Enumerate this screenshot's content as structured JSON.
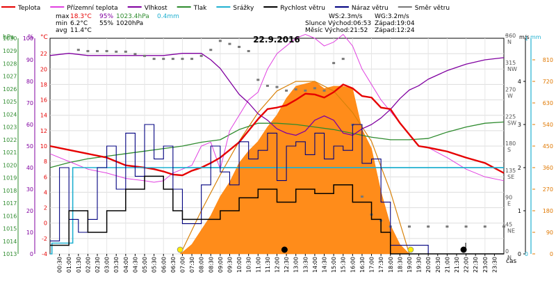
{
  "chart_data": {
    "type": "line",
    "title": "22.9.2016",
    "legend": [
      {
        "key": "teplota",
        "label": "Teplota",
        "color": "#e60000"
      },
      {
        "key": "rosny",
        "label": "Přízemní teplota",
        "color": "#e040e0"
      },
      {
        "key": "vlhkost",
        "label": "Vlhkost",
        "color": "#8000a0"
      },
      {
        "key": "tlak",
        "label": "Tlak",
        "color": "#2e8b2e"
      },
      {
        "key": "srazky",
        "label": "Srážky",
        "color": "#20b0d0"
      },
      {
        "key": "rychlost",
        "label": "Rychlost větru",
        "color": "#000000"
      },
      {
        "key": "naraz",
        "label": "Náraz větru",
        "color": "#000080"
      },
      {
        "key": "smer",
        "label": "Směr větru",
        "color": "#777777"
      }
    ],
    "stats": {
      "max": {
        "label": "max",
        "temp": "18.3°C",
        "hum": "95%",
        "press": "1023.4hPa",
        "rain": "0.4mm"
      },
      "min": {
        "label": "min",
        "temp": "6.2°C",
        "hum": "55%",
        "press": "1020hPa"
      },
      "avg": {
        "label": "avg",
        "temp": "11.4°C"
      }
    },
    "info": {
      "ws": "WS:2.3m/s",
      "wg": "WG:3.2m/s",
      "sun_rise": "Slunce Východ:06:53",
      "sun_set": "Západ:19:04",
      "moon_rise": "Měsíc Východ:21:52",
      "moon_set": "Západ:12:24"
    },
    "axis_titles": {
      "hpa": "hPa",
      "pct": "%",
      "degc": "°C",
      "ms": "m/s",
      "mm": "mm",
      "deg": "°",
      "time": "čas"
    },
    "axes": {
      "pressure": {
        "min": 1013,
        "max": 1030,
        "ticks": [
          "1013",
          "1014",
          "1015",
          "1016",
          "1017",
          "1018",
          "1019",
          "1020",
          "1021",
          "1022",
          "1023",
          "1024",
          "1025",
          "1026",
          "1027",
          "1028",
          "1029",
          "1030"
        ]
      },
      "humidity": {
        "min": 0,
        "max": 100,
        "ticks": [
          "0",
          "10",
          "20",
          "30",
          "40",
          "50",
          "60",
          "70",
          "80",
          "90",
          "100"
        ]
      },
      "temperature": {
        "min": -4,
        "max": 24,
        "ticks": [
          "-4",
          "-2",
          "0",
          "2",
          "4",
          "6",
          "8",
          "10",
          "12",
          "14",
          "16",
          "18",
          "20",
          "22"
        ]
      },
      "direction": {
        "min": 0,
        "max": 360,
        "ticks": [
          {
            "v": 0,
            "l": "0",
            "d": "N"
          },
          {
            "v": 45,
            "l": "45",
            "d": "NE"
          },
          {
            "v": 90,
            "l": "90",
            "d": "E"
          },
          {
            "v": 135,
            "l": "135",
            "d": "SE"
          },
          {
            "v": 180,
            "l": "180",
            "d": "S"
          },
          {
            "v": 225,
            "l": "225",
            "d": "SW"
          },
          {
            "v": 270,
            "l": "270",
            "d": "W"
          },
          {
            "v": 315,
            "l": "315",
            "d": "NW"
          },
          {
            "v": 360,
            "l": "360",
            "d": "N"
          }
        ]
      },
      "wind": {
        "min": 0,
        "max": 5,
        "ticks": [
          "0",
          "1",
          "2",
          "3",
          "4"
        ]
      },
      "rain": {
        "min": 0,
        "max": 1,
        "ticks": [
          "0",
          "1"
        ]
      },
      "solar": {
        "min": 0,
        "max": 900,
        "ticks": [
          "0",
          "90",
          "180",
          "270",
          "360",
          "450",
          "540",
          "630",
          "720",
          "810"
        ]
      },
      "time_ticks": [
        "00:30",
        "01:00",
        "01:30",
        "02:00",
        "02:30",
        "03:00",
        "03:30",
        "04:00",
        "04:30",
        "05:00",
        "05:30",
        "06:00",
        "06:30",
        "07:00",
        "07:30",
        "08:00",
        "08:30",
        "09:00",
        "09:30",
        "10:00",
        "10:30",
        "11:00",
        "11:30",
        "12:00",
        "12:30",
        "13:00",
        "13:30",
        "14:00",
        "14:30",
        "15:00",
        "15:30",
        "16:00",
        "16:30",
        "17:00",
        "17:30",
        "18:00",
        "18:30",
        "19:00",
        "19:30",
        "20:00",
        "20:30",
        "21:00",
        "21:30",
        "22:00",
        "22:30",
        "23:00",
        "23:30"
      ]
    },
    "series": {
      "temperature": {
        "x": [
          0,
          1,
          2,
          3,
          4,
          5,
          5.5,
          6,
          6.5,
          7,
          7.5,
          8,
          8.5,
          9,
          9.5,
          10,
          10.5,
          11,
          11.5,
          12,
          12.5,
          13,
          13.5,
          14,
          14.5,
          15,
          15.5,
          16,
          16.5,
          17,
          17.5,
          18,
          18.5,
          19,
          19.5,
          20,
          21,
          22,
          23,
          24
        ],
        "y": [
          10,
          9.5,
          9,
          8.5,
          7.5,
          7.2,
          7,
          6.7,
          6.3,
          6.2,
          6.8,
          7.2,
          7.8,
          8.5,
          9.5,
          10.5,
          12,
          13.5,
          14.8,
          15,
          15.3,
          16,
          16.8,
          16.7,
          16.3,
          17,
          18,
          17.5,
          16.5,
          16.3,
          15,
          14.8,
          13,
          11.5,
          10,
          9.8,
          9.3,
          8.5,
          7.8,
          6.5
        ]
      },
      "ground_temperature": {
        "x": [
          0,
          1,
          2,
          3,
          4,
          5,
          5.5,
          6,
          6.5,
          7,
          7.5,
          8,
          8.5,
          9,
          9.5,
          10,
          10.5,
          11,
          11.5,
          12,
          12.5,
          13,
          13.5,
          14,
          14.5,
          15,
          15.5,
          16,
          16.5,
          17,
          17.5,
          18,
          18.5,
          19,
          19.5,
          20,
          21,
          22,
          23,
          24
        ],
        "y": [
          9,
          8,
          7,
          6.5,
          5.8,
          5.5,
          5.3,
          5.5,
          6.5,
          7,
          7.5,
          10,
          10.5,
          7,
          12,
          14,
          16,
          17,
          20,
          22,
          23,
          24,
          24.5,
          24,
          23,
          23.5,
          24.5,
          23,
          20,
          18,
          16,
          14.5,
          13,
          11.5,
          10,
          9.8,
          8.5,
          7,
          6,
          5.5
        ]
      },
      "humidity": {
        "x": [
          0,
          1,
          2,
          3,
          4,
          5,
          6,
          7,
          8,
          8.5,
          9,
          9.5,
          10,
          10.5,
          11,
          11.5,
          12,
          12.5,
          13,
          13.5,
          14,
          14.5,
          15,
          15.5,
          16,
          16.5,
          17,
          17.5,
          18,
          18.5,
          19,
          19.5,
          20,
          21,
          22,
          23,
          24
        ],
        "y": [
          92,
          93,
          92,
          92,
          92,
          92,
          92,
          93,
          93,
          90,
          86,
          80,
          74,
          70,
          65,
          62,
          58,
          56,
          55,
          57,
          62,
          64,
          62,
          56,
          55,
          58,
          60,
          63,
          67,
          72,
          76,
          78,
          81,
          85,
          88,
          90,
          91
        ]
      },
      "pressure": {
        "x": [
          0,
          1,
          2,
          3,
          4,
          5,
          6,
          7,
          8,
          9,
          10,
          11,
          12,
          13,
          14,
          15,
          16,
          17,
          18,
          19,
          20,
          21,
          22,
          23,
          24
        ],
        "y": [
          1019.8,
          1020.2,
          1020.5,
          1020.7,
          1020.9,
          1021.1,
          1021.3,
          1021.5,
          1021.8,
          1022,
          1022.8,
          1023.3,
          1023.3,
          1023.2,
          1023,
          1022.8,
          1022.5,
          1022.2,
          1022,
          1022,
          1022.1,
          1022.6,
          1023,
          1023.3,
          1023.4
        ]
      },
      "rain_cumulative": {
        "x": [
          0,
          0.1,
          0.6,
          1.2,
          24
        ],
        "y": [
          0,
          0.05,
          0.05,
          0.4,
          0.4
        ]
      },
      "wind_speed": {
        "x": [
          0,
          1,
          2,
          3,
          4,
          5,
          6,
          6.5,
          7,
          8,
          9,
          10,
          11,
          12,
          13,
          14,
          15,
          16,
          17,
          17.5,
          18,
          19,
          20,
          21,
          22,
          23,
          24
        ],
        "y": [
          0.2,
          1,
          0.5,
          1,
          1.5,
          1.8,
          1.5,
          1,
          0.8,
          0.8,
          1,
          1.3,
          1.5,
          1.2,
          1.5,
          1.4,
          1.6,
          1.2,
          0.8,
          0.5,
          0,
          0,
          0,
          0,
          0,
          0,
          0
        ]
      },
      "wind_gust": {
        "x": [
          0,
          0.5,
          1,
          1.5,
          2,
          2.5,
          3,
          3.5,
          4,
          4.5,
          5,
          5.5,
          6,
          6.5,
          7,
          7.5,
          8,
          8.5,
          9,
          9.5,
          10,
          10.5,
          11,
          11.5,
          12,
          12.5,
          13,
          13.5,
          14,
          14.5,
          15,
          15.5,
          16,
          16.5,
          17,
          17.5,
          18,
          20,
          22,
          24
        ],
        "y": [
          0.3,
          2,
          0.8,
          0.5,
          0.8,
          2,
          2.5,
          1.5,
          2.8,
          1.8,
          3,
          2.2,
          2.5,
          1.5,
          0.7,
          0.7,
          1.6,
          2.5,
          1.9,
          1.6,
          2.6,
          2.2,
          2.4,
          2.8,
          1.7,
          2.5,
          2.6,
          2.3,
          2.8,
          2.2,
          2.5,
          2.4,
          3,
          2.1,
          2.2,
          1.2,
          0.2,
          0,
          0,
          0
        ]
      },
      "wind_direction": {
        "x": [
          1.5,
          2,
          2.5,
          3,
          3.5,
          4,
          4.5,
          5,
          5.5,
          6,
          6.5,
          7,
          7.5,
          8,
          8.5,
          9,
          9.5,
          10,
          10.5,
          11,
          11.5,
          12,
          12.5,
          13,
          13.5,
          14,
          14.5,
          15,
          15.5,
          16,
          16.5,
          17,
          17.5,
          18,
          19,
          20,
          21,
          22,
          23,
          24
        ],
        "y": [
          340,
          338,
          338,
          338,
          337,
          337,
          333,
          330,
          325,
          325,
          325,
          325,
          325,
          330,
          340,
          355,
          350,
          345,
          338,
          290,
          280,
          278,
          272,
          274,
          272,
          276,
          272,
          318,
          325,
          215,
          95,
          65,
          55,
          45,
          45,
          45,
          45,
          45,
          45,
          45
        ]
      },
      "solar_radiation": {
        "x": [
          6.9,
          7.5,
          8,
          8.5,
          9,
          9.5,
          10,
          10.5,
          11,
          11.5,
          12,
          12.5,
          13,
          13.5,
          14,
          14.5,
          15,
          15.5,
          16,
          16.5,
          17,
          17.5,
          18,
          18.5,
          19
        ],
        "y": [
          0,
          40,
          100,
          160,
          240,
          300,
          380,
          430,
          470,
          530,
          580,
          650,
          700,
          710,
          720,
          690,
          700,
          700,
          690,
          520,
          440,
          260,
          120,
          40,
          0
        ]
      },
      "solar_theoretical": {
        "x": [
          6.9,
          8,
          9,
          10,
          11,
          12,
          13,
          14,
          15,
          16,
          17,
          18,
          19
        ],
        "y": [
          0,
          180,
          330,
          470,
          590,
          680,
          720,
          720,
          680,
          590,
          470,
          260,
          0
        ]
      }
    },
    "markers": {
      "sun_rise_time": 6.88,
      "sun_set_time": 19.07,
      "moon_rise_time": 21.87,
      "moon_set_time": 12.4,
      "rain_max_level_mm": 0.4
    }
  }
}
